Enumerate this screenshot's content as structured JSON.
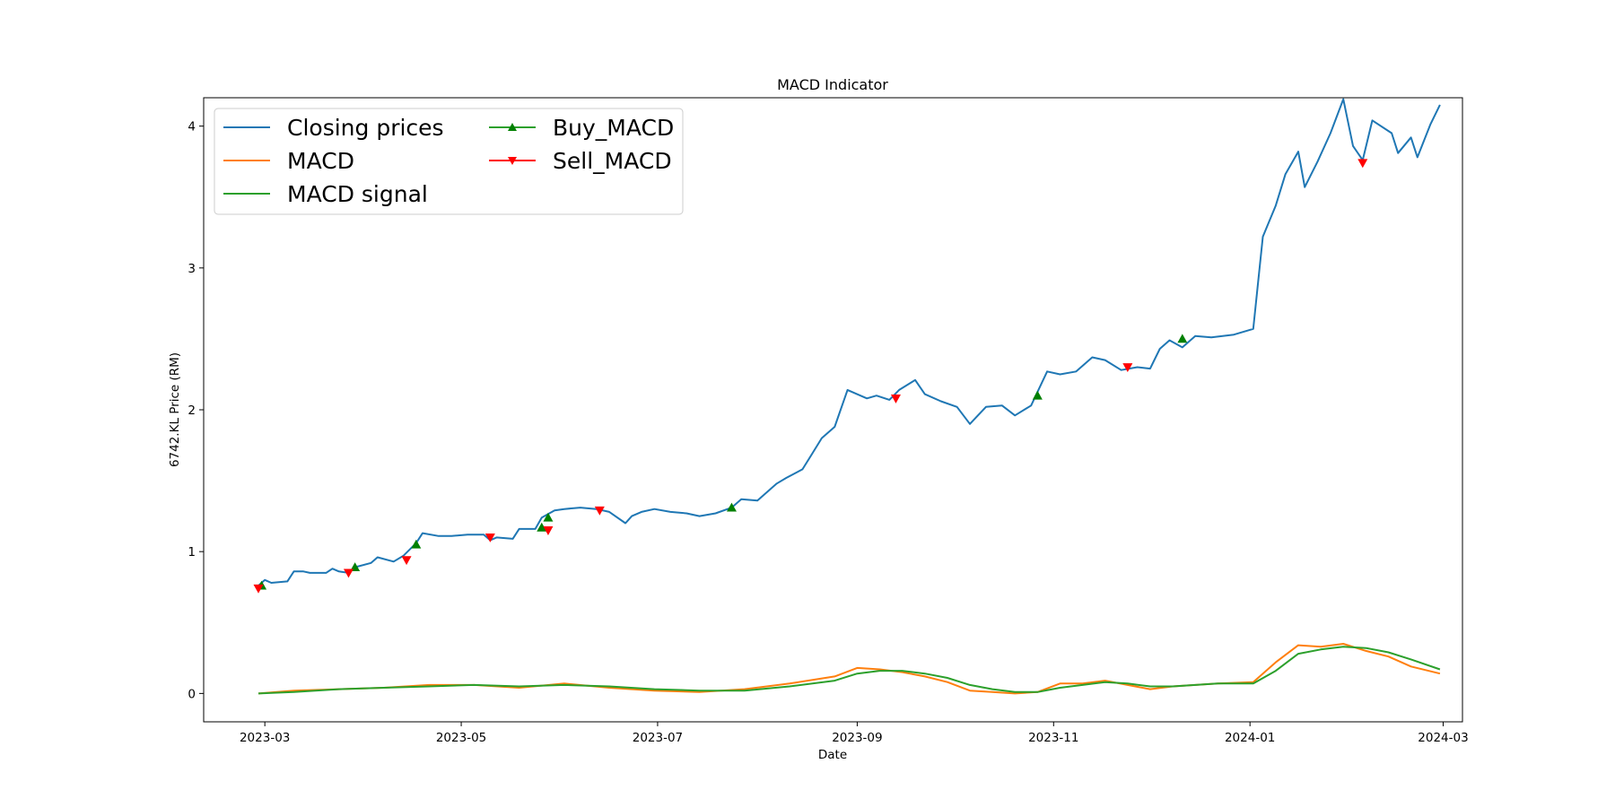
{
  "chart_data": {
    "type": "line",
    "title": "MACD Indicator",
    "xlabel": "Date",
    "ylabel": "6742.KL Price (RM)",
    "grid": false,
    "legend_position": "top-left",
    "xlim": [
      "2023-02-10",
      "2024-03-07"
    ],
    "ylim": [
      -0.2,
      4.2
    ],
    "x_ticks": [
      "2023-03",
      "2023-05",
      "2023-07",
      "2023-09",
      "2023-11",
      "2024-01",
      "2024-03"
    ],
    "y_ticks": [
      0,
      1,
      2,
      3,
      4
    ],
    "colors": {
      "closing": "#1f77b4",
      "macd": "#ff7f0e",
      "signal": "#2ca02c",
      "buy": "#008000",
      "sell": "#ff0000"
    },
    "series": [
      {
        "name": "Closing prices",
        "x": [
          "2023-02-27",
          "2023-03-01",
          "2023-03-03",
          "2023-03-08",
          "2023-03-10",
          "2023-03-13",
          "2023-03-15",
          "2023-03-20",
          "2023-03-22",
          "2023-03-24",
          "2023-03-27",
          "2023-03-29",
          "2023-04-03",
          "2023-04-05",
          "2023-04-10",
          "2023-04-13",
          "2023-04-17",
          "2023-04-19",
          "2023-04-24",
          "2023-04-28",
          "2023-05-03",
          "2023-05-08",
          "2023-05-10",
          "2023-05-12",
          "2023-05-17",
          "2023-05-19",
          "2023-05-24",
          "2023-05-26",
          "2023-05-30",
          "2023-06-02",
          "2023-06-07",
          "2023-06-12",
          "2023-06-16",
          "2023-06-21",
          "2023-06-23",
          "2023-06-26",
          "2023-06-30",
          "2023-07-05",
          "2023-07-10",
          "2023-07-14",
          "2023-07-19",
          "2023-07-24",
          "2023-07-27",
          "2023-08-01",
          "2023-08-07",
          "2023-08-10",
          "2023-08-15",
          "2023-08-18",
          "2023-08-21",
          "2023-08-25",
          "2023-08-29",
          "2023-09-04",
          "2023-09-07",
          "2023-09-11",
          "2023-09-14",
          "2023-09-19",
          "2023-09-22",
          "2023-09-27",
          "2023-10-02",
          "2023-10-06",
          "2023-10-11",
          "2023-10-16",
          "2023-10-20",
          "2023-10-25",
          "2023-10-30",
          "2023-11-03",
          "2023-11-08",
          "2023-11-13",
          "2023-11-17",
          "2023-11-22",
          "2023-11-27",
          "2023-12-01",
          "2023-12-04",
          "2023-12-07",
          "2023-12-11",
          "2023-12-15",
          "2023-12-20",
          "2023-12-27",
          "2024-01-02",
          "2024-01-05",
          "2024-01-09",
          "2024-01-12",
          "2024-01-16",
          "2024-01-18",
          "2024-01-22",
          "2024-01-26",
          "2024-01-30",
          "2024-02-02",
          "2024-02-05",
          "2024-02-08",
          "2024-02-14",
          "2024-02-16",
          "2024-02-20",
          "2024-02-22",
          "2024-02-26",
          "2024-02-29"
        ],
        "y": [
          0.76,
          0.8,
          0.78,
          0.79,
          0.86,
          0.86,
          0.85,
          0.85,
          0.88,
          0.86,
          0.85,
          0.89,
          0.92,
          0.96,
          0.93,
          0.97,
          1.06,
          1.13,
          1.11,
          1.11,
          1.12,
          1.12,
          1.08,
          1.1,
          1.09,
          1.16,
          1.16,
          1.24,
          1.29,
          1.3,
          1.31,
          1.3,
          1.28,
          1.2,
          1.25,
          1.28,
          1.3,
          1.28,
          1.27,
          1.25,
          1.27,
          1.31,
          1.37,
          1.36,
          1.48,
          1.52,
          1.58,
          1.69,
          1.8,
          1.88,
          2.14,
          2.08,
          2.1,
          2.07,
          2.14,
          2.21,
          2.11,
          2.06,
          2.02,
          1.9,
          2.02,
          2.03,
          1.96,
          2.03,
          2.27,
          2.25,
          2.27,
          2.37,
          2.35,
          2.28,
          2.3,
          2.29,
          2.43,
          2.49,
          2.44,
          2.52,
          2.51,
          2.53,
          2.57,
          3.22,
          3.44,
          3.66,
          3.82,
          3.57,
          3.75,
          3.95,
          4.19,
          3.86,
          3.76,
          4.04,
          3.95,
          3.81,
          3.92,
          3.78,
          4.01,
          4.15
        ]
      },
      {
        "name": "MACD",
        "x": [
          "2023-02-27",
          "2023-03-10",
          "2023-03-24",
          "2023-04-07",
          "2023-04-21",
          "2023-05-05",
          "2023-05-19",
          "2023-06-02",
          "2023-06-16",
          "2023-06-30",
          "2023-07-14",
          "2023-07-28",
          "2023-08-11",
          "2023-08-25",
          "2023-09-01",
          "2023-09-08",
          "2023-09-15",
          "2023-09-22",
          "2023-09-29",
          "2023-10-06",
          "2023-10-13",
          "2023-10-20",
          "2023-10-27",
          "2023-11-03",
          "2023-11-10",
          "2023-11-17",
          "2023-11-24",
          "2023-12-01",
          "2023-12-08",
          "2023-12-15",
          "2023-12-22",
          "2024-01-02",
          "2024-01-09",
          "2024-01-16",
          "2024-01-23",
          "2024-01-30",
          "2024-02-06",
          "2024-02-13",
          "2024-02-20",
          "2024-02-29"
        ],
        "y": [
          0.0,
          0.02,
          0.03,
          0.04,
          0.06,
          0.06,
          0.04,
          0.07,
          0.04,
          0.02,
          0.01,
          0.03,
          0.07,
          0.12,
          0.18,
          0.17,
          0.15,
          0.12,
          0.08,
          0.02,
          0.01,
          0.0,
          0.01,
          0.07,
          0.07,
          0.09,
          0.06,
          0.03,
          0.05,
          0.06,
          0.07,
          0.08,
          0.22,
          0.34,
          0.33,
          0.35,
          0.3,
          0.26,
          0.19,
          0.14
        ]
      },
      {
        "name": "MACD signal",
        "x": [
          "2023-02-27",
          "2023-03-10",
          "2023-03-24",
          "2023-04-07",
          "2023-04-21",
          "2023-05-05",
          "2023-05-19",
          "2023-06-02",
          "2023-06-16",
          "2023-06-30",
          "2023-07-14",
          "2023-07-28",
          "2023-08-11",
          "2023-08-25",
          "2023-09-01",
          "2023-09-08",
          "2023-09-15",
          "2023-09-22",
          "2023-09-29",
          "2023-10-06",
          "2023-10-13",
          "2023-10-20",
          "2023-10-27",
          "2023-11-03",
          "2023-11-10",
          "2023-11-17",
          "2023-11-24",
          "2023-12-01",
          "2023-12-08",
          "2023-12-15",
          "2023-12-22",
          "2024-01-02",
          "2024-01-09",
          "2024-01-16",
          "2024-01-23",
          "2024-01-30",
          "2024-02-06",
          "2024-02-13",
          "2024-02-20",
          "2024-02-29"
        ],
        "y": [
          0.0,
          0.01,
          0.03,
          0.04,
          0.05,
          0.06,
          0.05,
          0.06,
          0.05,
          0.03,
          0.02,
          0.02,
          0.05,
          0.09,
          0.14,
          0.16,
          0.16,
          0.14,
          0.11,
          0.06,
          0.03,
          0.01,
          0.01,
          0.04,
          0.06,
          0.08,
          0.07,
          0.05,
          0.05,
          0.06,
          0.07,
          0.07,
          0.16,
          0.28,
          0.31,
          0.33,
          0.32,
          0.29,
          0.24,
          0.17
        ]
      },
      {
        "name": "Buy_MACD",
        "marker": "triangle-up",
        "x": [
          "2023-02-28",
          "2023-03-29",
          "2023-04-17",
          "2023-05-26",
          "2023-05-28",
          "2023-07-24",
          "2023-10-27",
          "2023-12-11"
        ],
        "y": [
          0.76,
          0.89,
          1.05,
          1.17,
          1.24,
          1.31,
          2.1,
          2.5
        ]
      },
      {
        "name": "Sell_MACD",
        "marker": "triangle-down",
        "x": [
          "2023-02-27",
          "2023-03-27",
          "2023-04-14",
          "2023-05-10",
          "2023-05-28",
          "2023-06-13",
          "2023-09-13",
          "2023-11-24",
          "2024-02-05"
        ],
        "y": [
          0.74,
          0.85,
          0.94,
          1.1,
          1.15,
          1.29,
          2.08,
          2.3,
          3.74
        ]
      }
    ]
  }
}
